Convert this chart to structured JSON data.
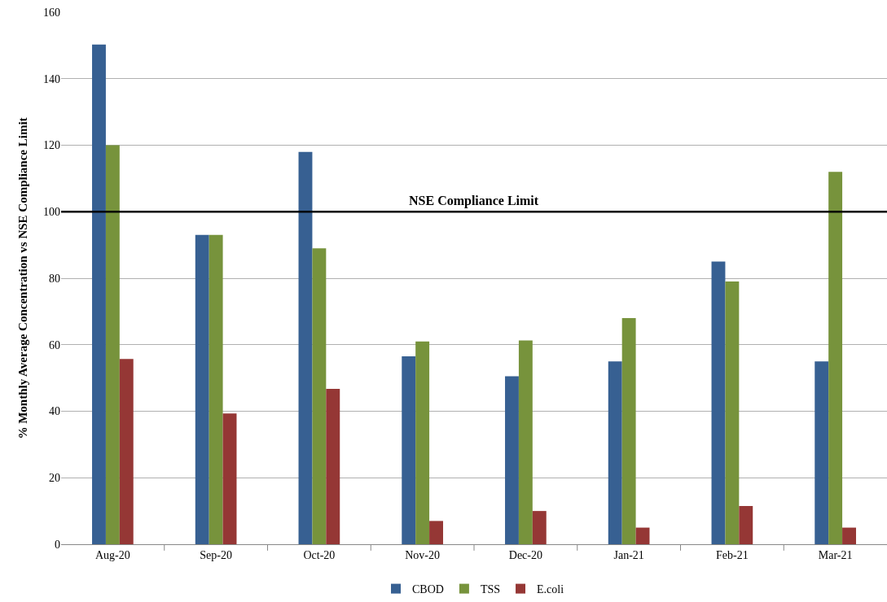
{
  "chart_data": {
    "type": "bar",
    "ylabel": "% Monthly Average Concentration vs NSE Compliance Limit",
    "categories": [
      "Aug-20",
      "Sep-20",
      "Oct-20",
      "Nov-20",
      "Dec-20",
      "Jan-21",
      "Feb-21",
      "Mar-21"
    ],
    "series": [
      {
        "name": "CBOD",
        "color": "#376092",
        "values": [
          150.3,
          93,
          118,
          56.5,
          50.5,
          55,
          85,
          55
        ]
      },
      {
        "name": "TSS",
        "color": "#77933c",
        "values": [
          120,
          93,
          89,
          61,
          61.3,
          68,
          79,
          112
        ]
      },
      {
        "name": "E.coli",
        "color": "#953735",
        "values": [
          55.7,
          39.3,
          46.7,
          7,
          10,
          5,
          11.5,
          5
        ]
      }
    ],
    "ylim": [
      0,
      160
    ],
    "yticks": [
      0,
      20,
      40,
      60,
      80,
      100,
      120,
      140,
      160
    ],
    "ref_lines": [
      {
        "axis": "y",
        "value": 100,
        "label": "NSE Compliance Limit",
        "color": "#000000"
      }
    ],
    "grid": "y",
    "legend": "bottom"
  }
}
